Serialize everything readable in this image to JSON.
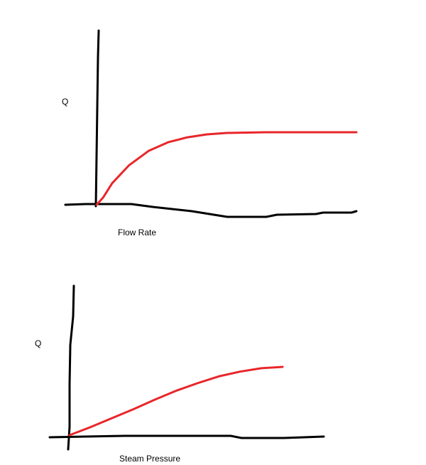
{
  "chart_data": [
    {
      "type": "line",
      "title": "",
      "xlabel": "Flow Rate",
      "ylabel": "Q",
      "grid": false,
      "series": [
        {
          "values": [
            [
              0,
              0
            ],
            [
              0.05,
              0.1
            ],
            [
              0.12,
              0.3
            ],
            [
              0.25,
              0.55
            ],
            [
              0.4,
              0.75
            ],
            [
              0.55,
              0.87
            ],
            [
              0.7,
              0.94
            ],
            [
              0.85,
              0.98
            ],
            [
              1.0,
              1.0
            ],
            [
              1.3,
              1.01
            ],
            [
              1.6,
              1.01
            ],
            [
              2.0,
              1.01
            ]
          ],
          "color": "#e8262a"
        }
      ]
    },
    {
      "type": "line",
      "title": "",
      "xlabel": "Steam Pressure",
      "ylabel": "Q",
      "grid": false,
      "series": [
        {
          "values": [
            [
              0,
              0
            ],
            [
              0.2,
              0.12
            ],
            [
              0.4,
              0.25
            ],
            [
              0.6,
              0.38
            ],
            [
              0.8,
              0.52
            ],
            [
              1.0,
              0.65
            ],
            [
              1.2,
              0.76
            ],
            [
              1.4,
              0.86
            ],
            [
              1.6,
              0.93
            ],
            [
              1.8,
              0.98
            ],
            [
              2.0,
              1.0
            ]
          ],
          "color": "#e8262a"
        }
      ]
    }
  ]
}
